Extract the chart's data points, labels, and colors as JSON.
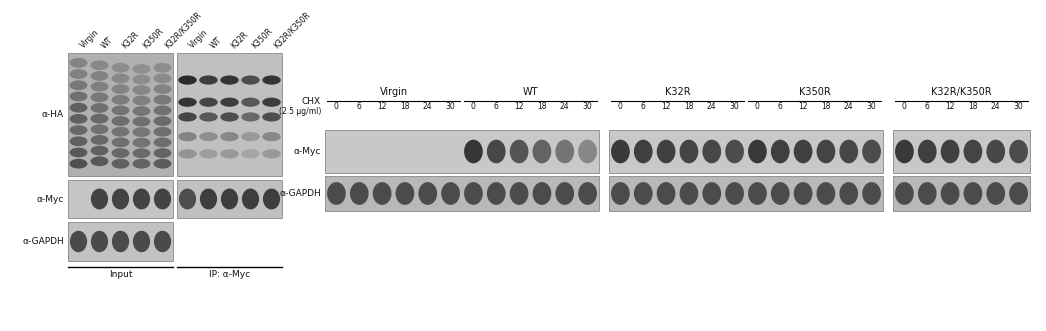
{
  "bg_color": "#ffffff",
  "left_panel": {
    "rotated_labels": [
      "Virgin",
      "WT",
      "K32R",
      "K350R",
      "K32R/K350R",
      "Virgin",
      "WT",
      "K32R",
      "K350R",
      "K32R/K350R"
    ],
    "row_labels": [
      "α-HA",
      "α-Myc",
      "α-GAPDH"
    ],
    "input_label": "Input",
    "ip_label": "IP: α-Myc"
  },
  "right_panel": {
    "group_labels": [
      "Virgin",
      "WT",
      "K32R",
      "K350R",
      "K32R/K350R"
    ],
    "chx_label": "CHX",
    "chx_conc": "(2.5 μg/ml)",
    "time_points": [
      "0",
      "6",
      "12",
      "18",
      "24",
      "30"
    ],
    "row_labels": [
      "α-Myc",
      "α-GAPDH"
    ]
  }
}
